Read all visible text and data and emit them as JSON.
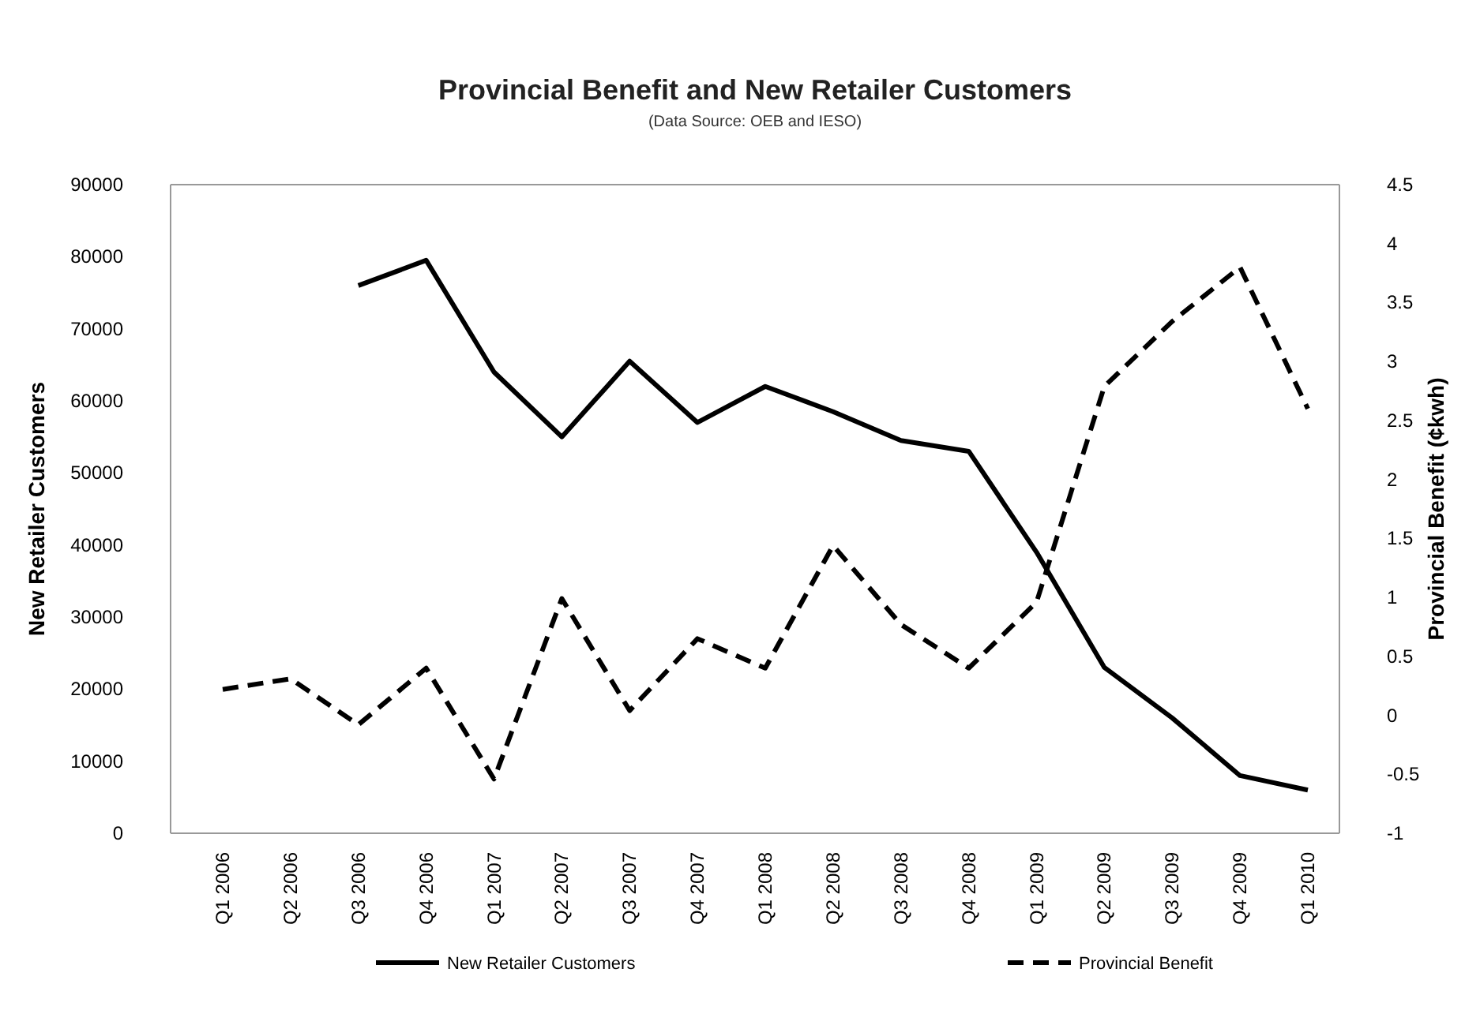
{
  "chart_data": {
    "type": "line",
    "title": "Provincial Benefit and New Retailer Customers",
    "subtitle": "(Data Source: OEB and IESO)",
    "ylabel": "New Retailer Customers",
    "y2label": "Provincial Benefit (¢kwh)",
    "categories": [
      "Q1 2006",
      "Q2 2006",
      "Q3 2006",
      "Q4 2006",
      "Q1 2007",
      "Q2 2007",
      "Q3 2007",
      "Q4 2007",
      "Q1 2008",
      "Q2 2008",
      "Q3 2008",
      "Q4 2008",
      "Q1 2009",
      "Q2 2009",
      "Q3 2009",
      "Q4 2009",
      "Q1 2010"
    ],
    "series": [
      {
        "name": "New Retailer Customers",
        "color": "#000000",
        "line_style": "solid",
        "values": [
          null,
          null,
          76000,
          79500,
          64000,
          55000,
          65500,
          57000,
          62000,
          58500,
          54500,
          53000,
          39000,
          23000,
          16000,
          8000,
          6000
        ]
      },
      {
        "name": "Provincial Benefit",
        "color": "#000000",
        "line_style": "dashed",
        "axis": "y2",
        "values": [
          0.22,
          0.31,
          -0.08,
          0.4,
          -0.54,
          0.99,
          0.04,
          0.65,
          0.4,
          1.44,
          0.77,
          0.4,
          0.96,
          2.79,
          3.34,
          3.8,
          2.6
        ]
      }
    ],
    "ylim": [
      0,
      90000
    ],
    "yticks": [
      0,
      10000,
      20000,
      30000,
      40000,
      50000,
      60000,
      70000,
      80000,
      90000
    ],
    "y2lim": [
      -1,
      4.5
    ],
    "y2ticks": [
      -1,
      -0.5,
      0,
      0.5,
      1,
      1.5,
      2,
      2.5,
      3,
      3.5,
      4,
      4.5
    ],
    "grid": false,
    "legend": "bottom"
  }
}
